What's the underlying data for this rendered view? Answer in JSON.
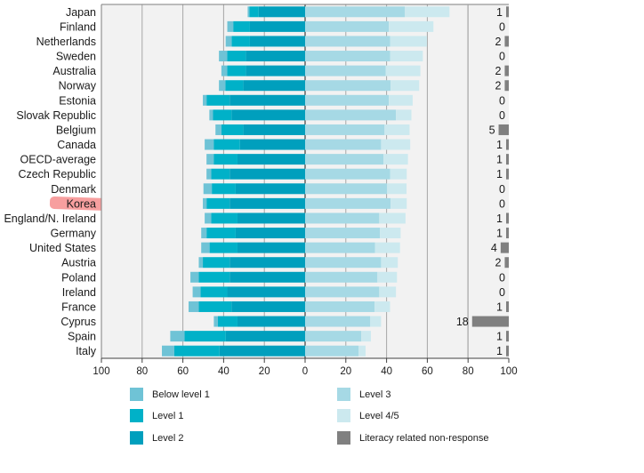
{
  "chart_data": {
    "type": "bar",
    "orientation": "horizontal-diverging-stacked",
    "title": "",
    "categories": [
      "Japan",
      "Finland",
      "Netherlands",
      "Sweden",
      "Australia",
      "Norway",
      "Estonia",
      "Slovak Republic",
      "Belgium",
      "Canada",
      "OECD-average",
      "Czech Republic",
      "Denmark",
      "Korea",
      "England/N. Ireland",
      "Germany",
      "United States",
      "Austria",
      "Poland",
      "Ireland",
      "France",
      "Cyprus",
      "Spain",
      "Italy"
    ],
    "highlighted_category": "Korea",
    "left_series": [
      {
        "name": "Level 2",
        "color": "#009fbd",
        "values": [
          22.8,
          27.1,
          27.1,
          29.1,
          29.1,
          30.3,
          37.0,
          36.1,
          30.3,
          32.0,
          33.2,
          37.0,
          34.1,
          37.0,
          33.2,
          34.1,
          33.2,
          37.0,
          37.0,
          38.2,
          36.1,
          33.2,
          39.0,
          42.0
        ]
      },
      {
        "name": "Level 1",
        "color": "#00b1c8",
        "values": [
          4.5,
          8.2,
          9.0,
          9.1,
          9.1,
          8.8,
          11.4,
          9.1,
          10.8,
          12.9,
          11.7,
          9.1,
          11.7,
          11.4,
          12.9,
          14.3,
          13.7,
          13.2,
          15.2,
          13.2,
          16.1,
          9.6,
          20.2,
          22.2
        ]
      },
      {
        "name": "Below level 1",
        "color": "#6fc3d6",
        "values": [
          0.9,
          2.9,
          2.9,
          4.1,
          2.9,
          3.2,
          1.8,
          1.8,
          2.9,
          4.4,
          3.5,
          2.3,
          4.1,
          1.8,
          3.2,
          2.6,
          4.1,
          2.0,
          4.1,
          3.8,
          5.0,
          2.0,
          7.0,
          6.1
        ]
      }
    ],
    "right_series": [
      {
        "name": "Level 3",
        "color": "#a6d9e5",
        "values": [
          49.0,
          41.1,
          41.7,
          41.7,
          39.6,
          42.0,
          41.1,
          44.6,
          39.0,
          37.3,
          38.5,
          41.7,
          40.2,
          42.0,
          36.4,
          36.7,
          34.3,
          37.3,
          35.5,
          36.4,
          34.1,
          32.0,
          27.6,
          26.2
        ]
      },
      {
        "name": "Level 4/5",
        "color": "#cce9ef",
        "values": [
          21.9,
          21.9,
          18.1,
          16.1,
          17.0,
          14.0,
          11.7,
          7.6,
          12.3,
          14.3,
          12.0,
          8.2,
          9.6,
          7.9,
          12.9,
          10.2,
          12.3,
          8.2,
          9.6,
          8.2,
          7.6,
          5.3,
          4.7,
          3.5
        ]
      }
    ],
    "non_response": {
      "name": "Literacy related non-response",
      "color": "#808080",
      "values": [
        1,
        0,
        2,
        0,
        2,
        2,
        0,
        0,
        5,
        1,
        1,
        1,
        0,
        0,
        1,
        1,
        4,
        2,
        0,
        0,
        1,
        18,
        1,
        1
      ]
    },
    "x_ticks_left": [
      "100",
      "80",
      "60",
      "40",
      "20",
      "0"
    ],
    "x_ticks_right": [
      "20",
      "40",
      "60",
      "80",
      "100"
    ],
    "xlim_left": [
      100,
      0
    ],
    "xlim_right": [
      0,
      100
    ],
    "grid": true,
    "xlabel": "",
    "ylabel": "",
    "legend_position": "bottom"
  },
  "legend": {
    "items": [
      {
        "label": "Below level 1",
        "color": "#6fc3d6"
      },
      {
        "label": "Level 1",
        "color": "#00b1c8"
      },
      {
        "label": "Level 2",
        "color": "#009fbd"
      },
      {
        "label": "Level 3",
        "color": "#a6d9e5"
      },
      {
        "label": "Level 4/5",
        "color": "#cce9ef"
      },
      {
        "label": "Literacy related non-response",
        "color": "#808080"
      }
    ]
  }
}
